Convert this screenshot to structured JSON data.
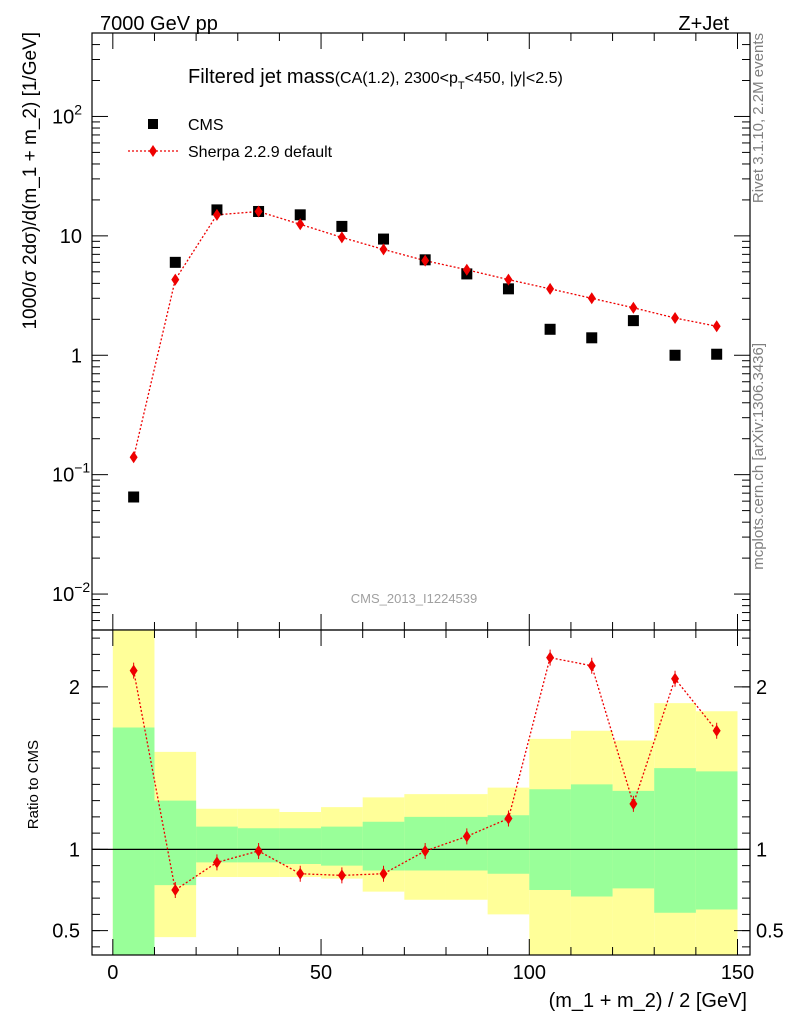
{
  "header": {
    "left": "7000 GeV pp",
    "right": "Z+Jet"
  },
  "title": {
    "main": "Filtered jet mass",
    "sub_a": "(CA(1.2), 2300<p",
    "sub_sub": "T",
    "sub_b": "<450, |y|<2.5)"
  },
  "side_labels": {
    "rivet": "Rivet 3.1.10,  2.2M events",
    "mcplots": "mcplots.cern.ch [arXiv:1306.3436]"
  },
  "watermark": "CMS_2013_I1224539",
  "legend": {
    "cms": "CMS",
    "sherpa": "Sherpa 2.2.9 default"
  },
  "colors": {
    "data": "#000000",
    "mc": "#ee0000",
    "band_inner": "#99ff99",
    "band_outer": "#ffff99"
  },
  "chart_data": [
    {
      "type": "scatter",
      "name": "main",
      "ylabel": "1000/σ 2dσ)/d(m_1 + m_2) [1/GeV]",
      "yscale": "log",
      "xlim": [
        -5,
        153
      ],
      "ylim": [
        0.005,
        500
      ],
      "y_ticks": [
        {
          "value": 0.01,
          "base": "10",
          "exp": "−2"
        },
        {
          "value": 0.1,
          "base": "10",
          "exp": "−1"
        },
        {
          "value": 1,
          "base": "1",
          "exp": ""
        },
        {
          "value": 10,
          "base": "10",
          "exp": ""
        },
        {
          "value": 100,
          "base": "10",
          "exp": "2"
        }
      ],
      "x": [
        5,
        15,
        25,
        35,
        45,
        55,
        65,
        75,
        85,
        95,
        105,
        115,
        125,
        135,
        145
      ],
      "series": [
        {
          "name": "CMS",
          "marker": "square",
          "values": [
            0.065,
            6.0,
            16.5,
            16.0,
            15.0,
            12.0,
            9.4,
            6.3,
            4.8,
            3.6,
            1.65,
            1.4,
            1.95,
            1.0,
            1.02
          ]
        },
        {
          "name": "Sherpa 2.2.9 default",
          "marker": "diamond",
          "line": "dotted",
          "values": [
            0.14,
            4.3,
            15.0,
            16.0,
            12.5,
            9.7,
            7.7,
            6.2,
            5.2,
            4.3,
            3.6,
            3.0,
            2.5,
            2.05,
            1.75
          ]
        }
      ]
    },
    {
      "type": "scatter",
      "name": "ratio",
      "ylabel": "Ratio to CMS",
      "xlabel": "(m_1 + m_2) / 2 [GeV]",
      "xlim": [
        -5,
        153
      ],
      "ylim": [
        0.35,
        2.35
      ],
      "x_ticks": [
        0,
        50,
        100,
        150
      ],
      "y_ticks": [
        0.5,
        1,
        2
      ],
      "reference_line": 1,
      "bins": [
        [
          0,
          10
        ],
        [
          10,
          20
        ],
        [
          20,
          30
        ],
        [
          30,
          40
        ],
        [
          40,
          50
        ],
        [
          50,
          60
        ],
        [
          60,
          70
        ],
        [
          70,
          80
        ],
        [
          80,
          90
        ],
        [
          90,
          100
        ],
        [
          100,
          110
        ],
        [
          110,
          120
        ],
        [
          120,
          130
        ],
        [
          130,
          140
        ],
        [
          140,
          150
        ]
      ],
      "band_outer_low": [
        0.35,
        0.46,
        0.83,
        0.83,
        0.83,
        0.82,
        0.74,
        0.69,
        0.69,
        0.6,
        0.35,
        0.35,
        0.35,
        0.35,
        0.35
      ],
      "band_outer_high": [
        2.35,
        1.6,
        1.25,
        1.25,
        1.23,
        1.26,
        1.32,
        1.34,
        1.34,
        1.38,
        1.68,
        1.73,
        1.67,
        1.9,
        1.85
      ],
      "band_inner_low": [
        0.35,
        0.78,
        0.92,
        0.92,
        0.91,
        0.9,
        0.87,
        0.87,
        0.87,
        0.85,
        0.75,
        0.71,
        0.76,
        0.61,
        0.63
      ],
      "band_inner_high": [
        1.75,
        1.3,
        1.14,
        1.13,
        1.13,
        1.14,
        1.17,
        1.2,
        1.2,
        1.21,
        1.37,
        1.4,
        1.36,
        1.5,
        1.48
      ],
      "x": [
        5,
        15,
        25,
        35,
        45,
        55,
        65,
        75,
        85,
        95,
        105,
        115,
        125,
        135,
        145
      ],
      "series": [
        {
          "name": "Sherpa 2.2.9 default",
          "marker": "diamond",
          "line": "dotted",
          "values": [
            2.1,
            0.75,
            0.92,
            0.99,
            0.85,
            0.84,
            0.85,
            0.99,
            1.08,
            1.19,
            2.18,
            2.13,
            1.28,
            2.05,
            1.73
          ]
        }
      ]
    }
  ]
}
